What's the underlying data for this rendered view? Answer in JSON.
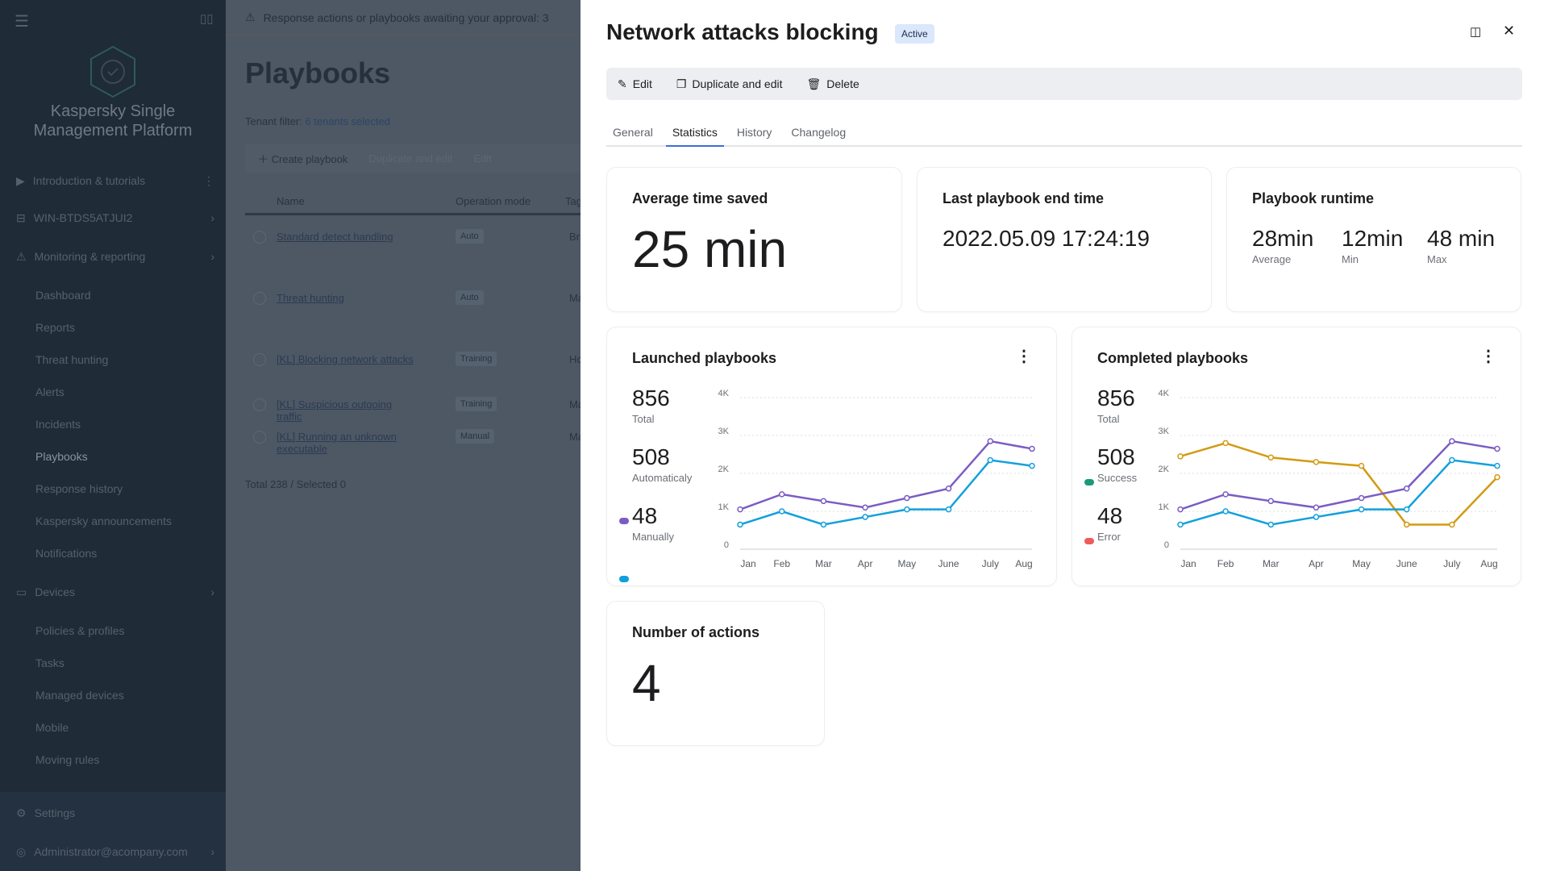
{
  "sidebar": {
    "brand": "Kaspersky Single Management Platform",
    "items": [
      {
        "label": "Introduction & tutorials",
        "icon": "play-icon",
        "top": 210
      },
      {
        "label": "WIN-BTDS5ATJUI2",
        "icon": "server-icon",
        "top": 256
      },
      {
        "label": "Monitoring & reporting",
        "icon": "warning-icon",
        "top": 304
      }
    ],
    "sub_items": [
      {
        "label": "Dashboard",
        "top": 352
      },
      {
        "label": "Reports",
        "top": 392
      },
      {
        "label": "Threat hunting",
        "top": 432
      },
      {
        "label": "Alerts",
        "top": 472
      },
      {
        "label": "Incidents",
        "top": 512
      },
      {
        "label": "Playbooks",
        "top": 552,
        "active": true
      },
      {
        "label": "Response history",
        "top": 592
      },
      {
        "label": "Kaspersky announcements",
        "top": 632
      },
      {
        "label": "Notifications",
        "top": 672
      }
    ],
    "devices": "Devices",
    "device_items": [
      {
        "label": "Policies & profiles",
        "top": 768
      },
      {
        "label": "Tasks",
        "top": 808
      },
      {
        "label": "Managed devices",
        "top": 848
      },
      {
        "label": "Mobile",
        "top": 888
      },
      {
        "label": "Moving rules",
        "top": 928
      }
    ],
    "settings": "Settings",
    "user": "Administrator@acompany.com"
  },
  "background": {
    "alert": "Response actions or playbooks awaiting your approval: 3",
    "title": "Playbooks",
    "tenant_label": "Tenant filter:",
    "tenant_value": "6 tenants selected",
    "create": "Create playbook",
    "duplicate": "Duplicate and edit",
    "edit": "Edit",
    "columns": [
      "Name",
      "Operation mode",
      "Tag"
    ],
    "rows": [
      {
        "name": "Standard detect handling",
        "mode": "Auto",
        "tag": "Br"
      },
      {
        "name": "Threat hunting",
        "mode": "Auto",
        "tag": "Ma"
      },
      {
        "name": "[KL] Blocking network attacks",
        "mode": "Training",
        "tag": "Ho"
      },
      {
        "name": "[KL] Suspicious outgoing traffic",
        "mode": "Training",
        "tag": "Ma"
      },
      {
        "name": "[KL] Running an unknown executable",
        "mode": "Manual",
        "tag": "Ma"
      }
    ],
    "footer": "Total 238 / Selected 0"
  },
  "panel": {
    "title": "Network attacks blocking",
    "status": "Active",
    "toolbar": {
      "edit": "Edit",
      "duplicate": "Duplicate and edit",
      "delete": "Delete"
    },
    "tabs": [
      "General",
      "Statistics",
      "History",
      "Changelog"
    ],
    "active_tab": "Statistics",
    "avg_time": {
      "title": "Average time saved",
      "value": "25 min"
    },
    "last_end": {
      "title": "Last playbook end time",
      "value": "2022.05.09  17:24:19"
    },
    "runtime": {
      "title": "Playbook runtime",
      "avg": "28min",
      "avg_label": "Average",
      "min": "12min",
      "min_label": "Min",
      "max": "48 min",
      "max_label": "Max"
    },
    "launched": {
      "title": "Launched playbooks",
      "total": "856",
      "total_label": "Total",
      "auto": "508",
      "auto_label": "Automaticaly",
      "manual": "48",
      "manual_label": "Manually"
    },
    "completed": {
      "title": "Completed playbooks",
      "total": "856",
      "total_label": "Total",
      "success": "508",
      "success_label": "Success",
      "error": "48",
      "error_label": "Error"
    },
    "actions": {
      "title": "Number of actions",
      "value": "4"
    }
  },
  "colors": {
    "purple": "#7b5cc4",
    "blue": "#12a0dc",
    "orange": "#d39a12",
    "success": "#1a9a7a",
    "error": "#f05a5a",
    "accent": "#3d6ddb"
  },
  "chart_data": [
    {
      "type": "line",
      "title": "Launched playbooks",
      "categories": [
        "Jan",
        "Feb",
        "Mar",
        "Apr",
        "May",
        "June",
        "July",
        "Aug"
      ],
      "yticks": [
        "0",
        "1K",
        "2K",
        "3K",
        "4K"
      ],
      "ylim": [
        0,
        4000
      ],
      "grid": true,
      "series": [
        {
          "color": "#7b5cc4",
          "values": [
            1050,
            1450,
            1270,
            1100,
            1350,
            1600,
            2850,
            2650
          ]
        },
        {
          "color": "#12a0dc",
          "values": [
            650,
            1000,
            650,
            850,
            1050,
            1050,
            2350,
            2200
          ]
        }
      ]
    },
    {
      "type": "line",
      "title": "Completed playbooks",
      "categories": [
        "Jan",
        "Feb",
        "Mar",
        "Apr",
        "May",
        "June",
        "July",
        "Aug"
      ],
      "yticks": [
        "0",
        "1K",
        "2K",
        "3K",
        "4K"
      ],
      "ylim": [
        0,
        4000
      ],
      "grid": true,
      "series": [
        {
          "color": "#d39a12",
          "values": [
            2450,
            2800,
            2420,
            2300,
            2200,
            650,
            650,
            1900
          ]
        },
        {
          "color": "#7b5cc4",
          "values": [
            1050,
            1450,
            1270,
            1100,
            1350,
            1600,
            2850,
            2650
          ]
        },
        {
          "color": "#12a0dc",
          "values": [
            650,
            1000,
            650,
            850,
            1050,
            1050,
            2350,
            2200
          ]
        }
      ]
    }
  ]
}
